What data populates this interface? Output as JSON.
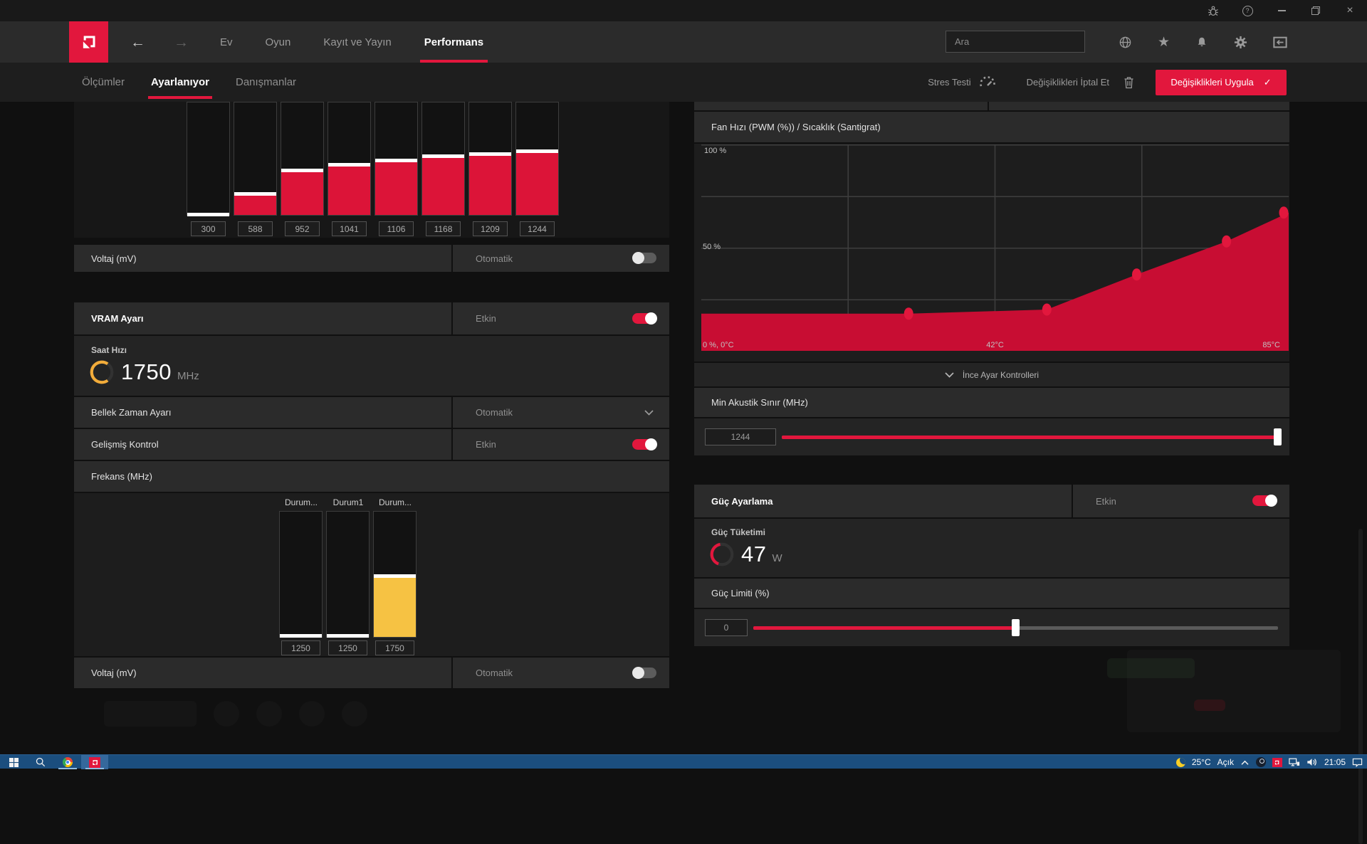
{
  "titlebar": {
    "controls": [
      {
        "name": "bug-report"
      },
      {
        "name": "help"
      },
      {
        "name": "minimize"
      },
      {
        "name": "restore"
      },
      {
        "name": "close"
      }
    ]
  },
  "nav": {
    "tabs": [
      {
        "label": "Ev",
        "active": false
      },
      {
        "label": "Oyun",
        "active": false
      },
      {
        "label": "Kayıt ve Yayın",
        "active": false
      },
      {
        "label": "Performans",
        "active": true
      }
    ],
    "search_placeholder": "Ara",
    "icons": [
      "globe",
      "star",
      "bell",
      "gear",
      "dock-left"
    ]
  },
  "subnav": {
    "tabs": [
      {
        "label": "Ölçümler",
        "active": false
      },
      {
        "label": "Ayarlanıyor",
        "active": true
      },
      {
        "label": "Danışmanlar",
        "active": false
      }
    ],
    "stress_test_label": "Stres Testi",
    "discard_label": "Değişiklikleri İptal Et",
    "apply_label": "Değişiklikleri Uygula",
    "apply_check": "✓"
  },
  "gpu_tuning": {
    "freq_chart": {
      "type": "bar",
      "values": [
        "300",
        "588",
        "952",
        "1041",
        "1106",
        "1168",
        "1209",
        "1244"
      ],
      "fill_pct": [
        2,
        20,
        41,
        46,
        50,
        54,
        56,
        58
      ],
      "bar_color": "#dc1438"
    },
    "voltage": {
      "label": "Voltaj (mV)",
      "value": "Otomatik",
      "enabled": false
    }
  },
  "vram": {
    "header": {
      "label": "VRAM Ayarı",
      "value": "Etkin",
      "enabled": true
    },
    "clock": {
      "label": "Saat Hızı",
      "value": "1750",
      "unit": "MHz"
    },
    "memory_timing": {
      "label": "Bellek Zaman Ayarı",
      "value": "Otomatik"
    },
    "advanced_control": {
      "label": "Gelişmiş Kontrol",
      "value": "Etkin",
      "enabled": true
    },
    "freq_header": "Frekans (MHz)",
    "state_chart": {
      "type": "bar",
      "labels": [
        "Durum...",
        "Durum1",
        "Durum..."
      ],
      "values": [
        "1250",
        "1250",
        "1750"
      ],
      "fill_pct": [
        2,
        2,
        50
      ],
      "colors": [
        "#dc1438",
        "#dc1438",
        "#f6c243"
      ]
    },
    "voltage": {
      "label": "Voltaj (mV)",
      "value": "Otomatik",
      "enabled": false
    }
  },
  "fan": {
    "title": "Fan Hızı (PWM (%)) / Sıcaklık (Santigrat)",
    "chart_data": {
      "type": "area",
      "xlabel": "Sıcaklık (Santigrat)",
      "ylabel": "Fan Hızı (PWM (%))",
      "xlim": [
        0,
        85
      ],
      "ylim": [
        0,
        100
      ],
      "x_axis_labels": [
        "0 %, 0°C",
        "42°C",
        "85°C"
      ],
      "y_axis_labels": [
        "100 %",
        "50 %"
      ],
      "grid": true,
      "curve_start": {
        "temp": 0,
        "fan": 18
      },
      "points": [
        {
          "temp": 30,
          "fan": 18
        },
        {
          "temp": 50,
          "fan": 20
        },
        {
          "temp": 63,
          "fan": 37
        },
        {
          "temp": 76,
          "fan": 53
        },
        {
          "temp": 85,
          "fan": 67
        }
      ],
      "fill_color": "#c80d33",
      "point_color": "#e2173d"
    },
    "fine_controls_label": "İnce Ayar Kontrolleri",
    "min_acoustic": {
      "label": "Min Akustik Sınır (MHz)",
      "value": "1244",
      "slider_pct": 99.2
    }
  },
  "power": {
    "header": {
      "label": "Güç Ayarlama",
      "value": "Etkin",
      "enabled": true
    },
    "consumption": {
      "label": "Güç Tüketimi",
      "value": "47",
      "unit": "W"
    },
    "limit": {
      "label": "Güç Limiti (%)",
      "value": "0",
      "slider_pct": 50
    }
  },
  "taskbar": {
    "weather_temp": "25°C",
    "weather_cond": "Açık",
    "time": "21:05",
    "apps": [
      "start",
      "search",
      "chrome",
      "amd-radeon-software"
    ],
    "tray": [
      "weather-moon",
      "chevron-up",
      "steam",
      "amd",
      "network",
      "volume",
      "clock",
      "notifications"
    ]
  },
  "colors": {
    "accent": "#e2173d",
    "yellow": "#f6c243",
    "taskbar_blue": "#1b4e7e"
  }
}
